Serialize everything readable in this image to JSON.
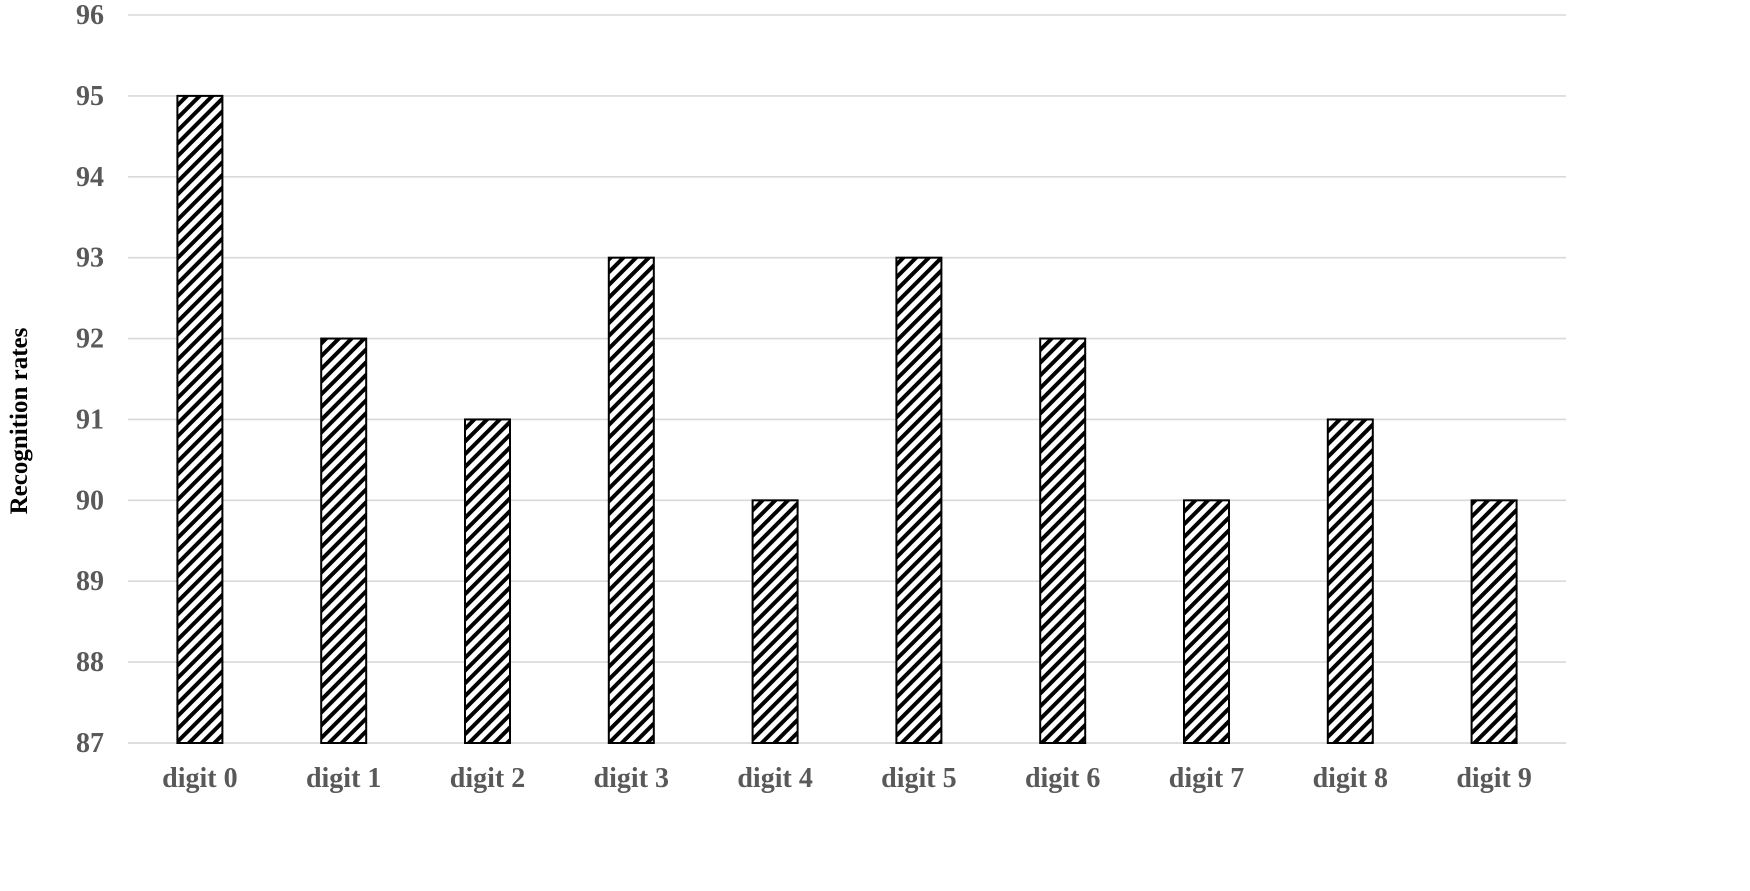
{
  "chart_data": {
    "type": "bar",
    "title": "",
    "xlabel": "",
    "ylabel": "Recognition rates",
    "categories": [
      "digit 0",
      "digit 1",
      "digit 2",
      "digit 3",
      "digit 4",
      "digit 5",
      "digit 6",
      "digit 7",
      "digit 8",
      "digit 9"
    ],
    "values": [
      95,
      92,
      91,
      93,
      90,
      93,
      92,
      90,
      91,
      90
    ],
    "ylim": [
      87,
      96
    ],
    "yticks": [
      87,
      88,
      89,
      90,
      91,
      92,
      93,
      94,
      95,
      96
    ],
    "grid": true,
    "legend": "none",
    "bar_fill": "diagonal-hatch",
    "colors": {
      "bar_stroke": "#000000",
      "hatch": "#000000",
      "grid": "#d9d9d9",
      "tick_text": "#595959",
      "axis_label": "#000000"
    }
  }
}
